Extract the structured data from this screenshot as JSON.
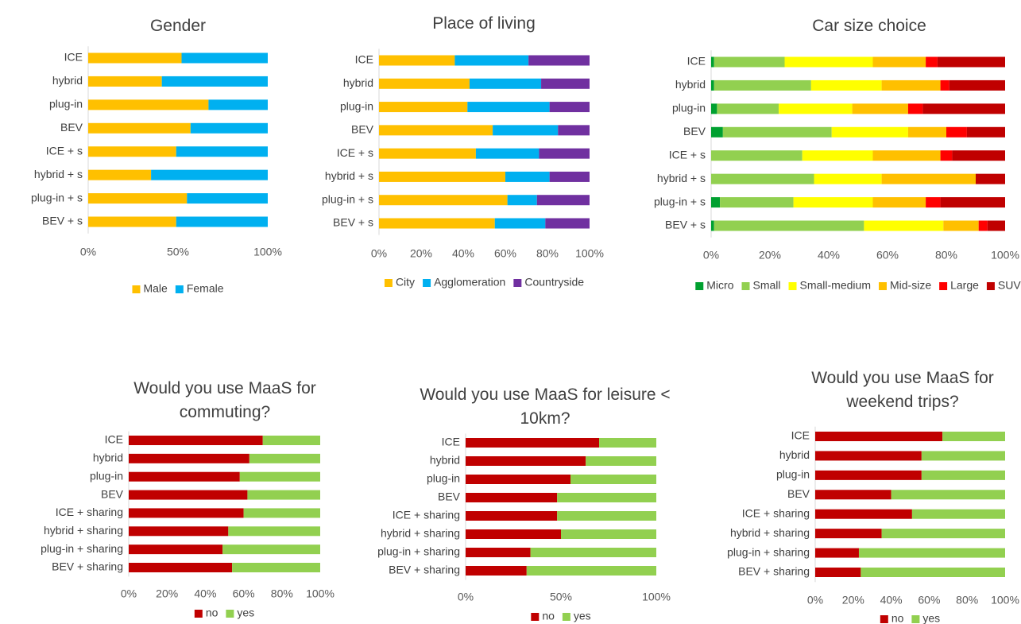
{
  "chart_data": [
    {
      "type": "bar",
      "orientation": "horizontal",
      "stacked": true,
      "legend": "bottom",
      "title": "Gender",
      "categories": [
        "ICE",
        "hybrid",
        "plug-in",
        "BEV",
        "ICE + s",
        "hybrid + s",
        "plug-in + s",
        "BEV + s"
      ],
      "series": [
        {
          "name": "Male",
          "color": "#ffc000",
          "values": [
            52,
            41,
            67,
            57,
            49,
            35,
            55,
            49
          ]
        },
        {
          "name": "Female",
          "color": "#00b0f0",
          "values": [
            48,
            59,
            33,
            43,
            51,
            65,
            45,
            51
          ]
        }
      ],
      "xlim": [
        0,
        100
      ],
      "xticks": [
        {
          "value": 0,
          "label": "0%"
        },
        {
          "value": 50,
          "label": "50%"
        },
        {
          "value": 100,
          "label": "100%"
        }
      ]
    },
    {
      "type": "bar",
      "orientation": "horizontal",
      "stacked": true,
      "legend": "bottom",
      "title": "Place of living",
      "categories": [
        "ICE",
        "hybrid",
        "plug-in",
        "BEV",
        "ICE + s",
        "hybrid + s",
        "plug-in + s",
        "BEV + s"
      ],
      "series": [
        {
          "name": "City",
          "color": "#ffc000",
          "values": [
            36,
            43,
            42,
            54,
            46,
            60,
            61,
            55
          ]
        },
        {
          "name": "Agglomeration",
          "color": "#00b0f0",
          "values": [
            35,
            34,
            39,
            31,
            30,
            21,
            14,
            24
          ]
        },
        {
          "name": "Countryside",
          "color": "#7030a0",
          "values": [
            29,
            23,
            19,
            15,
            24,
            19,
            25,
            21
          ]
        }
      ],
      "xlim": [
        0,
        100
      ],
      "xticks": [
        {
          "value": 0,
          "label": "0%"
        },
        {
          "value": 20,
          "label": "20%"
        },
        {
          "value": 40,
          "label": "40%"
        },
        {
          "value": 60,
          "label": "60%"
        },
        {
          "value": 80,
          "label": "80%"
        },
        {
          "value": 100,
          "label": "100%"
        }
      ]
    },
    {
      "type": "bar",
      "orientation": "horizontal",
      "stacked": true,
      "legend": "bottom",
      "title": "Car size choice",
      "categories": [
        "ICE",
        "hybrid",
        "plug-in",
        "BEV",
        "ICE + s",
        "hybrid + s",
        "plug-in + s",
        "BEV + s"
      ],
      "series": [
        {
          "name": "Micro",
          "color": "#00a030",
          "values": [
            1,
            1,
            2,
            4,
            0,
            0,
            3,
            1
          ]
        },
        {
          "name": "Small",
          "color": "#92d050",
          "values": [
            24,
            33,
            21,
            37,
            31,
            35,
            25,
            51
          ]
        },
        {
          "name": "Small-medium",
          "color": "#ffff00",
          "values": [
            30,
            24,
            25,
            26,
            24,
            23,
            27,
            27
          ]
        },
        {
          "name": "Mid-size",
          "color": "#ffc000",
          "values": [
            18,
            20,
            19,
            13,
            23,
            32,
            18,
            12
          ]
        },
        {
          "name": "Large",
          "color": "#ff0000",
          "values": [
            4,
            3,
            5,
            7,
            4,
            0,
            5,
            3
          ]
        },
        {
          "name": "SUV",
          "color": "#c00000",
          "values": [
            23,
            19,
            28,
            13,
            18,
            10,
            22,
            6
          ]
        }
      ],
      "xlim": [
        0,
        100
      ],
      "xticks": [
        {
          "value": 0,
          "label": "0%"
        },
        {
          "value": 20,
          "label": "20%"
        },
        {
          "value": 40,
          "label": "40%"
        },
        {
          "value": 60,
          "label": "60%"
        },
        {
          "value": 80,
          "label": "80%"
        },
        {
          "value": 100,
          "label": "100%"
        }
      ]
    },
    {
      "type": "bar",
      "orientation": "horizontal",
      "stacked": true,
      "legend": "bottom",
      "title": "Would you use MaaS for commuting?",
      "categories": [
        "ICE",
        "hybrid",
        "plug-in",
        "BEV",
        "ICE + sharing",
        "hybrid + sharing",
        "plug-in + sharing",
        "BEV + sharing"
      ],
      "series": [
        {
          "name": "no",
          "color": "#c00000",
          "values": [
            70,
            63,
            58,
            62,
            60,
            52,
            49,
            54
          ]
        },
        {
          "name": "yes",
          "color": "#92d050",
          "values": [
            30,
            37,
            42,
            38,
            40,
            48,
            51,
            46
          ]
        }
      ],
      "xlim": [
        0,
        100
      ],
      "xticks": [
        {
          "value": 0,
          "label": "0%"
        },
        {
          "value": 20,
          "label": "20%"
        },
        {
          "value": 40,
          "label": "40%"
        },
        {
          "value": 60,
          "label": "60%"
        },
        {
          "value": 80,
          "label": "80%"
        },
        {
          "value": 100,
          "label": "100%"
        }
      ]
    },
    {
      "type": "bar",
      "orientation": "horizontal",
      "stacked": true,
      "legend": "bottom",
      "title": "Would you use MaaS for leisure < 10km?",
      "categories": [
        "ICE",
        "hybrid",
        "plug-in",
        "BEV",
        "ICE + sharing",
        "hybrid + sharing",
        "plug-in + sharing",
        "BEV + sharing"
      ],
      "series": [
        {
          "name": "no",
          "color": "#c00000",
          "values": [
            70,
            63,
            55,
            48,
            48,
            50,
            34,
            32
          ]
        },
        {
          "name": "yes",
          "color": "#92d050",
          "values": [
            30,
            37,
            45,
            52,
            52,
            50,
            66,
            68
          ]
        }
      ],
      "xlim": [
        0,
        100
      ],
      "xticks": [
        {
          "value": 0,
          "label": "0%"
        },
        {
          "value": 50,
          "label": "50%"
        },
        {
          "value": 100,
          "label": "100%"
        }
      ]
    },
    {
      "type": "bar",
      "orientation": "horizontal",
      "stacked": true,
      "legend": "bottom",
      "title": "Would you use MaaS for weekend trips?",
      "categories": [
        "ICE",
        "hybrid",
        "plug-in",
        "BEV",
        "ICE + sharing",
        "hybrid + sharing",
        "plug-in + sharing",
        "BEV + sharing"
      ],
      "series": [
        {
          "name": "no",
          "color": "#c00000",
          "values": [
            67,
            56,
            56,
            40,
            51,
            35,
            23,
            24
          ]
        },
        {
          "name": "yes",
          "color": "#92d050",
          "values": [
            33,
            44,
            44,
            60,
            49,
            65,
            77,
            76
          ]
        }
      ],
      "xlim": [
        0,
        100
      ],
      "xticks": [
        {
          "value": 0,
          "label": "0%"
        },
        {
          "value": 20,
          "label": "20%"
        },
        {
          "value": 40,
          "label": "40%"
        },
        {
          "value": 60,
          "label": "60%"
        },
        {
          "value": 80,
          "label": "80%"
        },
        {
          "value": 100,
          "label": "100%"
        }
      ]
    }
  ]
}
